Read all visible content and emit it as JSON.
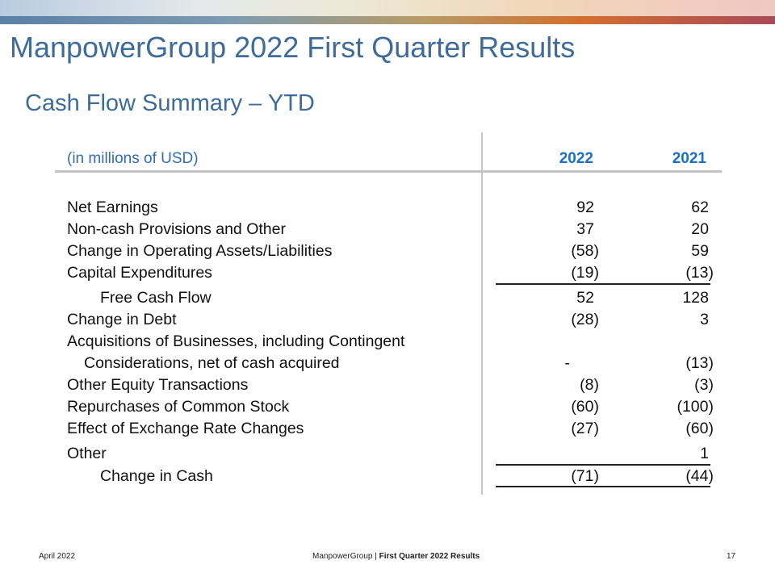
{
  "slide": {
    "title": "ManpowerGroup 2022 First Quarter Results",
    "subtitle": "Cash Flow Summary – YTD"
  },
  "table": {
    "unit_label": "(in millions of USD)",
    "year_1": "2022",
    "year_2": "2021",
    "rows": [
      {
        "label": "Net Earnings",
        "v2022": "92",
        "v2021": "62"
      },
      {
        "label": "Non-cash Provisions and Other",
        "v2022": "37",
        "v2021": "20"
      },
      {
        "label": "Change in Operating Assets/Liabilities",
        "v2022": "(58)",
        "v2021": "59"
      },
      {
        "label": "Capital Expenditures",
        "v2022": "(19)",
        "v2021": "(13)"
      },
      {
        "label": "Free Cash Flow",
        "v2022": "52",
        "v2021": "128"
      },
      {
        "label": "Change in Debt",
        "v2022": "(28)",
        "v2021": "3"
      },
      {
        "label": "Acquisitions of Businesses, including Contingent",
        "v2022": "",
        "v2021": ""
      },
      {
        "label": "Considerations, net of cash acquired",
        "v2022": "-",
        "v2021": "(13)"
      },
      {
        "label": "Other Equity Transactions",
        "v2022": "(8)",
        "v2021": "(3)"
      },
      {
        "label": "Repurchases of Common Stock",
        "v2022": "(60)",
        "v2021": "(100)"
      },
      {
        "label": "Effect of Exchange Rate Changes",
        "v2022": "(27)",
        "v2021": "(60)"
      },
      {
        "label": "Other",
        "v2022": "",
        "v2021": "1"
      },
      {
        "label": "Change in Cash",
        "v2022": "(71)",
        "v2021": "(44)"
      }
    ]
  },
  "footer": {
    "date": "April 2022",
    "company": "ManpowerGroup",
    "separator": "|",
    "report": "First Quarter 2022 Results",
    "page_number": "17"
  },
  "colors": {
    "title": "#3d6b9a",
    "header_year": "#1a6fc6",
    "unit_label": "#2e6db6"
  }
}
